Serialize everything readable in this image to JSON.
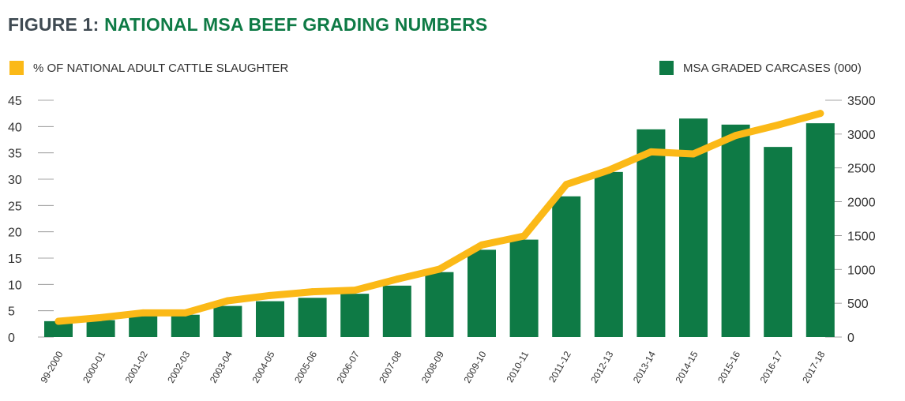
{
  "header": {
    "prefix": "FIGURE 1:",
    "title": "NATIONAL MSA BEEF GRADING NUMBERS"
  },
  "colors": {
    "bar": "#0e7a45",
    "line": "#fbb917",
    "title_prefix": "#3f4a52",
    "title": "#0e7a45"
  },
  "chart_data": {
    "type": "bar+line",
    "title": "NATIONAL MSA BEEF GRADING NUMBERS",
    "categories": [
      "99-2000",
      "2000-01",
      "2001-02",
      "2002-03",
      "2003-04",
      "2004-05",
      "2005-06",
      "2006-07",
      "2007-08",
      "2008-09",
      "2009-10",
      "2010-11",
      "2011-12",
      "2012-13",
      "2013-14",
      "2014-15",
      "2015-16",
      "2016-17",
      "2017-18"
    ],
    "series": [
      {
        "name": "MSA GRADED CARCASES (000)",
        "type": "bar",
        "axis": "right",
        "values": [
          235,
          250,
          330,
          330,
          460,
          530,
          580,
          640,
          760,
          960,
          1290,
          1440,
          2080,
          2440,
          3070,
          3230,
          3140,
          2810,
          3160
        ]
      },
      {
        "name": "% OF NATIONAL ADULT CATTLE SLAUGHTER",
        "type": "line",
        "axis": "left",
        "values": [
          3,
          3.7,
          4.6,
          4.6,
          6.9,
          7.9,
          8.6,
          8.9,
          11,
          12.9,
          17.5,
          19.2,
          29,
          31.7,
          35.2,
          34.8,
          38.3,
          40.3,
          42.5
        ]
      }
    ],
    "y_left": {
      "min": 0,
      "max": 45,
      "ticks": [
        0,
        5,
        10,
        15,
        20,
        25,
        30,
        35,
        40,
        45
      ]
    },
    "y_right": {
      "min": 0,
      "max": 3500,
      "ticks": [
        0,
        500,
        1000,
        1500,
        2000,
        2500,
        3000,
        3500
      ]
    },
    "grid": false,
    "legend": [
      "top-left",
      "top-right"
    ]
  }
}
